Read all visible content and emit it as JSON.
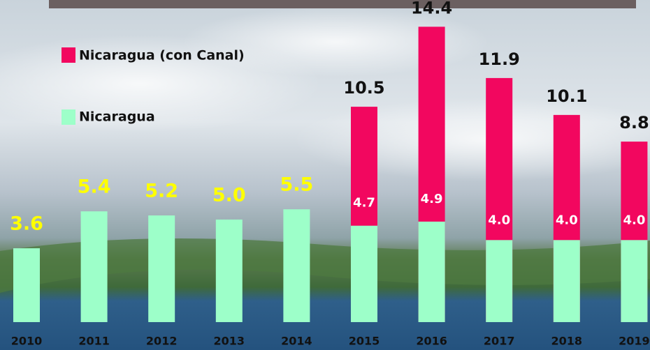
{
  "chart_data": {
    "type": "bar",
    "categories": [
      "2010",
      "2011",
      "2012",
      "2013",
      "2014",
      "2015",
      "2016",
      "2017",
      "2018",
      "2019"
    ],
    "series": [
      {
        "name": "Nicaragua (con Canal)",
        "color": "#f2075f",
        "values": [
          null,
          null,
          null,
          null,
          null,
          10.5,
          14.4,
          11.9,
          10.1,
          8.8
        ]
      },
      {
        "name": "Nicaragua",
        "color": "#9dffc9",
        "values": [
          3.6,
          5.4,
          5.2,
          5.0,
          5.5,
          4.7,
          4.9,
          4.0,
          4.0,
          4.0
        ],
        "value_labels": [
          "3.6",
          "5.4",
          "5.2",
          "5.0",
          "5.5",
          "4.7",
          "4.9",
          "4.0",
          "4.0",
          "4.0"
        ]
      }
    ],
    "ylim": [
      0,
      15.5
    ]
  }
}
